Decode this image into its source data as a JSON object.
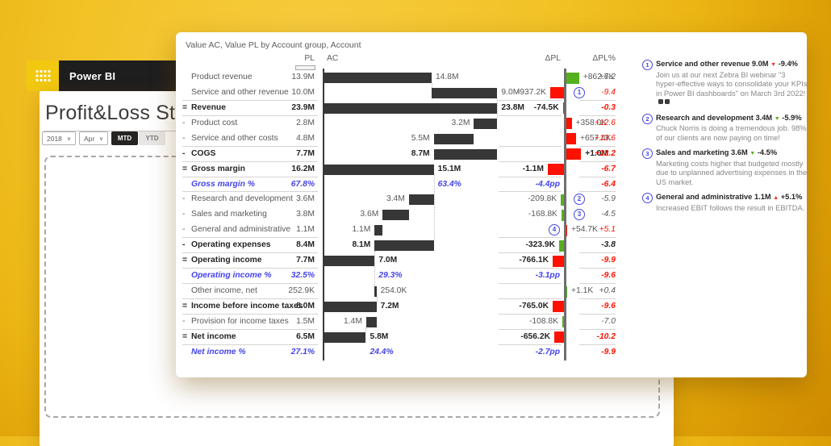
{
  "app": {
    "brand": "Power BI"
  },
  "page": {
    "title": "Profit&Loss Statement",
    "filters": {
      "year": "2018",
      "month": "Apr",
      "toggle_active": "MTD",
      "toggle_inactive": "YTD"
    }
  },
  "chart": {
    "title": "Value AC, Value PL by Account group, Account",
    "columns": {
      "pl": "PL",
      "ac": "AC",
      "dpl": "ΔPL",
      "dpl_pct": "ΔPL%"
    }
  },
  "colors": {
    "bar_dark": "#373737",
    "variance_red": "#FE1100",
    "variance_green": "#54B01C",
    "percent_blue": "#4443E9",
    "marker_blue": "#4846E0",
    "brand_yellow": "#F2C811",
    "header_black": "#1F1E1E"
  },
  "table": {
    "rows": [
      {
        "prefix": "",
        "label": "Product revenue",
        "pl": "13.9M",
        "bold": false,
        "pct_row": false,
        "ac": "14.8M",
        "ac_from": 0,
        "ac_to": 14.8,
        "ac_side": "after",
        "dpl": "+862.7K",
        "dpl_k": 862.7,
        "dpl_color": "green",
        "dpl_pct": "+6.2",
        "pct_style": "g",
        "border": false,
        "marker": null
      },
      {
        "prefix": "",
        "label": "Service and other revenue",
        "pl": "10.0M",
        "bold": false,
        "pct_row": false,
        "ac": "9.0M",
        "ac_from": 14.8,
        "ac_to": 23.8,
        "ac_side": "after",
        "dpl": "-937.2K",
        "dpl_k": -937.2,
        "dpl_color": "red",
        "dpl_pct": "-9.4",
        "pct_style": "r",
        "border": true,
        "marker": {
          "n": "1",
          "side": "right"
        }
      },
      {
        "prefix": "=",
        "label": "Revenue",
        "pl": "23.9M",
        "bold": true,
        "pct_row": false,
        "ac": "23.8M",
        "ac_from": 0,
        "ac_to": 23.8,
        "ac_side": "after",
        "dpl": "-74.5K",
        "dpl_k": -74.5,
        "dpl_color": "red",
        "dpl_pct": "-0.3",
        "pct_style": "rb",
        "border": true,
        "marker": null
      },
      {
        "prefix": "-",
        "label": "Product cost",
        "pl": "2.8M",
        "bold": false,
        "pct_row": false,
        "ac": "3.2M",
        "ac_from": 20.6,
        "ac_to": 23.8,
        "ac_side": "before",
        "dpl": "+358.0K",
        "dpl_k": 358.0,
        "dpl_color": "red",
        "dpl_pct": "+12.6",
        "pct_style": "r",
        "border": false,
        "marker": null
      },
      {
        "prefix": "-",
        "label": "Service and other costs",
        "pl": "4.8M",
        "bold": false,
        "pct_row": false,
        "ac": "5.5M",
        "ac_from": 15.1,
        "ac_to": 20.6,
        "ac_side": "before",
        "dpl": "+657.4K",
        "dpl_k": 657.4,
        "dpl_color": "red",
        "dpl_pct": "+13.6",
        "pct_style": "r",
        "border": true,
        "marker": null
      },
      {
        "prefix": "-",
        "label": "COGS",
        "pl": "7.7M",
        "bold": true,
        "pct_row": false,
        "ac": "8.7M",
        "ac_from": 15.1,
        "ac_to": 23.8,
        "ac_side": "before",
        "dpl": "+1.0M",
        "dpl_k": 1000,
        "dpl_color": "red",
        "dpl_pct": "+13.2",
        "pct_style": "rb",
        "border": true,
        "marker": null
      },
      {
        "prefix": "=",
        "label": "Gross margin",
        "pl": "16.2M",
        "bold": true,
        "pct_row": false,
        "ac": "15.1M",
        "ac_from": 0,
        "ac_to": 15.1,
        "ac_side": "after",
        "dpl": "-1.1M",
        "dpl_k": -1100,
        "dpl_color": "red",
        "dpl_pct": "-6.7",
        "pct_style": "rb",
        "border": true,
        "marker": null
      },
      {
        "prefix": "",
        "label": "Gross margin %",
        "pl": "67.8%",
        "bold": false,
        "pct_row": true,
        "ac": "63.4%",
        "ac_from": null,
        "ac_to": 15.1,
        "ac_side": "after",
        "dpl": "-4.4pp",
        "dpl_k": null,
        "dpl_color": null,
        "dpl_pct": "-6.4",
        "pct_style": "rb",
        "border": true,
        "marker": null
      },
      {
        "prefix": "-",
        "label": "Research and development",
        "pl": "3.6M",
        "bold": false,
        "pct_row": false,
        "ac": "3.4M",
        "ac_from": 11.7,
        "ac_to": 15.1,
        "ac_side": "before",
        "dpl": "-209.8K",
        "dpl_k": -209.8,
        "dpl_color": "green",
        "dpl_pct": "-5.9",
        "pct_style": "g",
        "border": false,
        "marker": {
          "n": "2",
          "side": "right"
        }
      },
      {
        "prefix": "-",
        "label": "Sales and marketing",
        "pl": "3.8M",
        "bold": false,
        "pct_row": false,
        "ac": "3.6M",
        "ac_from": 8.1,
        "ac_to": 11.7,
        "ac_side": "before",
        "dpl": "-168.8K",
        "dpl_k": -168.8,
        "dpl_color": "green",
        "dpl_pct": "-4.5",
        "pct_style": "g",
        "border": false,
        "marker": {
          "n": "3",
          "side": "right"
        }
      },
      {
        "prefix": "-",
        "label": "General and administrative",
        "pl": "1.1M",
        "bold": false,
        "pct_row": false,
        "ac": "1.1M",
        "ac_from": 7.0,
        "ac_to": 8.1,
        "ac_side": "before",
        "dpl": "+54.7K",
        "dpl_k": 54.7,
        "dpl_color": "red",
        "dpl_pct": "+5.1",
        "pct_style": "r",
        "border": true,
        "marker": {
          "n": "4",
          "side": "left"
        }
      },
      {
        "prefix": "-",
        "label": "Operating expenses",
        "pl": "8.4M",
        "bold": true,
        "pct_row": false,
        "ac": "8.1M",
        "ac_from": 7.0,
        "ac_to": 15.1,
        "ac_side": "before",
        "dpl": "-323.9K",
        "dpl_k": -323.9,
        "dpl_color": "green",
        "dpl_pct": "-3.8",
        "pct_style": "gb",
        "border": true,
        "marker": null
      },
      {
        "prefix": "=",
        "label": "Operating income",
        "pl": "7.7M",
        "bold": true,
        "pct_row": false,
        "ac": "7.0M",
        "ac_from": 0,
        "ac_to": 7.0,
        "ac_side": "after",
        "dpl": "-766.1K",
        "dpl_k": -766.1,
        "dpl_color": "red",
        "dpl_pct": "-9.9",
        "pct_style": "rb",
        "border": true,
        "marker": null
      },
      {
        "prefix": "",
        "label": "Operating income %",
        "pl": "32.5%",
        "bold": false,
        "pct_row": true,
        "ac": "29.3%",
        "ac_from": null,
        "ac_to": 7.0,
        "ac_side": "after",
        "dpl": "-3.1pp",
        "dpl_k": null,
        "dpl_color": null,
        "dpl_pct": "-9.6",
        "pct_style": "rb",
        "border": true,
        "marker": null
      },
      {
        "prefix": "",
        "label": "Other income, net",
        "pl": "252.9K",
        "bold": false,
        "pct_row": false,
        "ac": "254.0K",
        "ac_from": 7.0,
        "ac_to": 7.25,
        "ac_side": "after",
        "dpl": "+1.1K",
        "dpl_k": 1.1,
        "dpl_color": "green",
        "dpl_pct": "+0.4",
        "pct_style": "g",
        "border": true,
        "marker": null
      },
      {
        "prefix": "=",
        "label": "Income before income taxes",
        "pl": "8.0M",
        "bold": true,
        "pct_row": false,
        "ac": "7.2M",
        "ac_from": 0,
        "ac_to": 7.25,
        "ac_side": "after",
        "dpl": "-765.0K",
        "dpl_k": -765.0,
        "dpl_color": "red",
        "dpl_pct": "-9.6",
        "pct_style": "rb",
        "border": true,
        "marker": null
      },
      {
        "prefix": "-",
        "label": "Provision for income taxes",
        "pl": "1.5M",
        "bold": false,
        "pct_row": false,
        "ac": "1.4M",
        "ac_from": 5.85,
        "ac_to": 7.25,
        "ac_side": "before",
        "dpl": "-108.8K",
        "dpl_k": -108.8,
        "dpl_color": "green",
        "dpl_pct": "-7.0",
        "pct_style": "g",
        "border": true,
        "marker": null
      },
      {
        "prefix": "=",
        "label": "Net income",
        "pl": "6.5M",
        "bold": true,
        "pct_row": false,
        "ac": "5.8M",
        "ac_from": 0,
        "ac_to": 5.8,
        "ac_side": "after",
        "dpl": "-656.2K",
        "dpl_k": -656.2,
        "dpl_color": "red",
        "dpl_pct": "-10.2",
        "pct_style": "rb",
        "border": true,
        "marker": null
      },
      {
        "prefix": "",
        "label": "Net income %",
        "pl": "27.1%",
        "bold": false,
        "pct_row": true,
        "ac": "24.4%",
        "ac_from": null,
        "ac_to": 5.8,
        "ac_side": "after",
        "dpl": "-2.7pp",
        "dpl_k": null,
        "dpl_color": null,
        "dpl_pct": "-9.9",
        "pct_style": "rb",
        "border": false,
        "marker": null
      }
    ]
  },
  "comments": [
    {
      "n": "1",
      "account": "Service and other revenue",
      "value": "9.0M",
      "arrow": "▼",
      "arrow_color": "red",
      "pct": "-9.4%",
      "body": "Join us at our next Zebra BI webinar \"3 hyper-effective ways to consolidate your KPIs in Power BI dashboards\" on March 3rd 2022!"
    },
    {
      "n": "2",
      "account": "Research and development",
      "value": "3.4M",
      "arrow": "▼",
      "arrow_color": "green",
      "pct": "-5.9%",
      "body": "Chuck Norris is doing a tremendous job. 98% of our clients are now paying on time!"
    },
    {
      "n": "3",
      "account": "Sales and marketing",
      "value": "3.6M",
      "arrow": "▼",
      "arrow_color": "green",
      "pct": "-4.5%",
      "body": "Marketing costs higher that budgeted mostly due to unplanned advertising expenses in the US market."
    },
    {
      "n": "4",
      "account": "General and administrative",
      "value": "1.1M",
      "arrow": "▲",
      "arrow_color": "red",
      "pct": "+5.1%",
      "body": "Increased EBIT follows the result in EBITDA."
    }
  ]
}
